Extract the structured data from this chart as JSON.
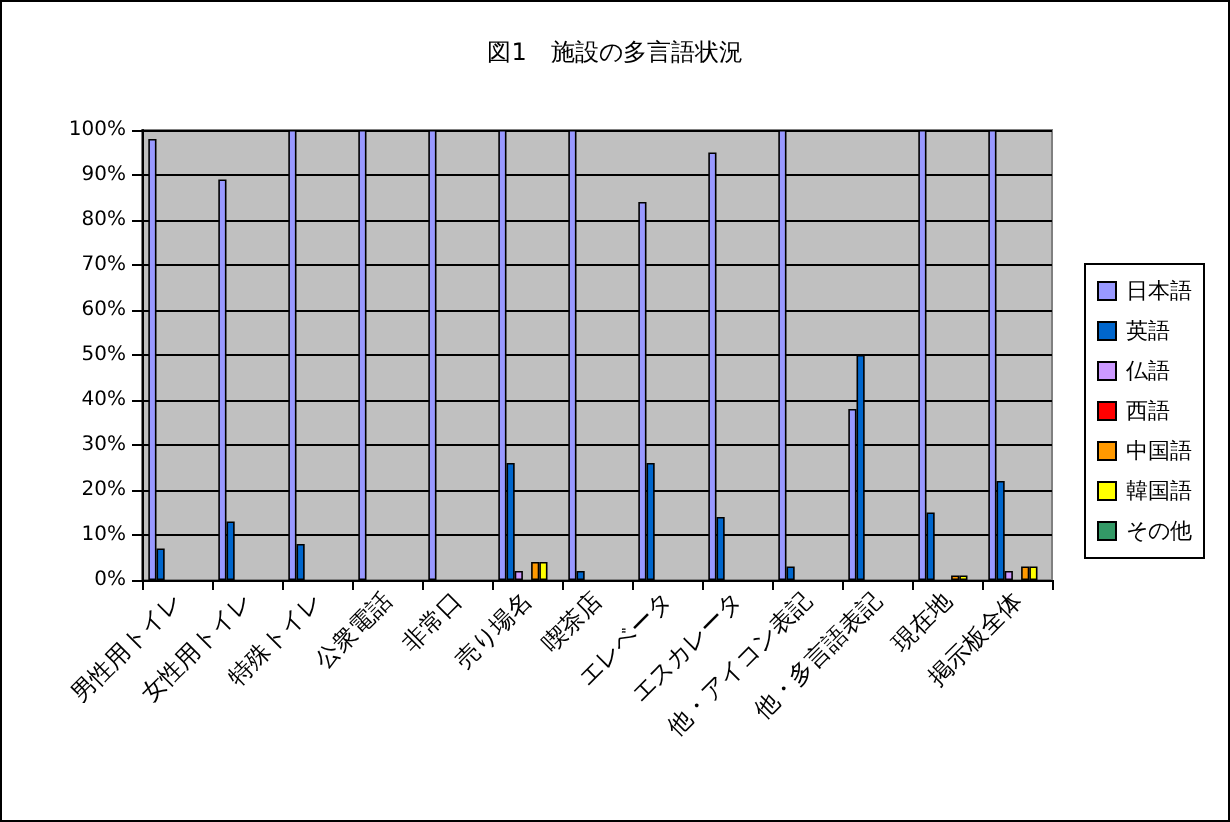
{
  "chart_data": {
    "type": "bar",
    "title": "図1　施設の多言語状況",
    "categories": [
      "男性用トイレ",
      "女性用トイレ",
      "特殊トイレ",
      "公衆電話",
      "非常口",
      "売り場名",
      "喫茶店",
      "エレベータ",
      "エスカレータ",
      "他・アイコン表記",
      "他・多言語表記",
      "現在地",
      "掲示板全体"
    ],
    "series": [
      {
        "name": "日本語",
        "color": "#9999ff",
        "values": [
          98,
          89,
          100,
          100,
          100,
          100,
          100,
          84,
          95,
          100,
          38,
          100,
          100
        ]
      },
      {
        "name": "英語",
        "color": "#0066cc",
        "values": [
          7,
          13,
          8,
          0,
          0,
          26,
          2,
          26,
          14,
          3,
          50,
          15,
          22
        ]
      },
      {
        "name": "仏語",
        "color": "#cc99ff",
        "values": [
          0,
          0,
          0,
          0,
          0,
          2,
          0,
          0,
          0,
          0,
          0,
          0,
          2
        ]
      },
      {
        "name": "西語",
        "color": "#ff0000",
        "values": [
          0,
          0,
          0,
          0,
          0,
          0,
          0,
          0,
          0,
          0,
          0,
          0,
          0
        ]
      },
      {
        "name": "中国語",
        "color": "#ff9900",
        "values": [
          0,
          0,
          0,
          0,
          0,
          4,
          0,
          0,
          0,
          0,
          0,
          1,
          3
        ]
      },
      {
        "name": "韓国語",
        "color": "#ffff00",
        "values": [
          0,
          0,
          0,
          0,
          0,
          4,
          0,
          0,
          0,
          0,
          0,
          1,
          3
        ]
      },
      {
        "name": "その他",
        "color": "#339966",
        "values": [
          0,
          0,
          0,
          0,
          0,
          0,
          0,
          0,
          0,
          0,
          0,
          0,
          0
        ]
      }
    ],
    "ylim": [
      0,
      100
    ],
    "yticks": [
      {
        "value": 0,
        "label": "0%"
      },
      {
        "value": 10,
        "label": "10%"
      },
      {
        "value": 20,
        "label": "20%"
      },
      {
        "value": 30,
        "label": "30%"
      },
      {
        "value": 40,
        "label": "40%"
      },
      {
        "value": 50,
        "label": "50%"
      },
      {
        "value": 60,
        "label": "60%"
      },
      {
        "value": 70,
        "label": "70%"
      },
      {
        "value": 80,
        "label": "80%"
      },
      {
        "value": 90,
        "label": "90%"
      },
      {
        "value": 100,
        "label": "100%"
      }
    ],
    "grid": "y",
    "legend": "right"
  }
}
